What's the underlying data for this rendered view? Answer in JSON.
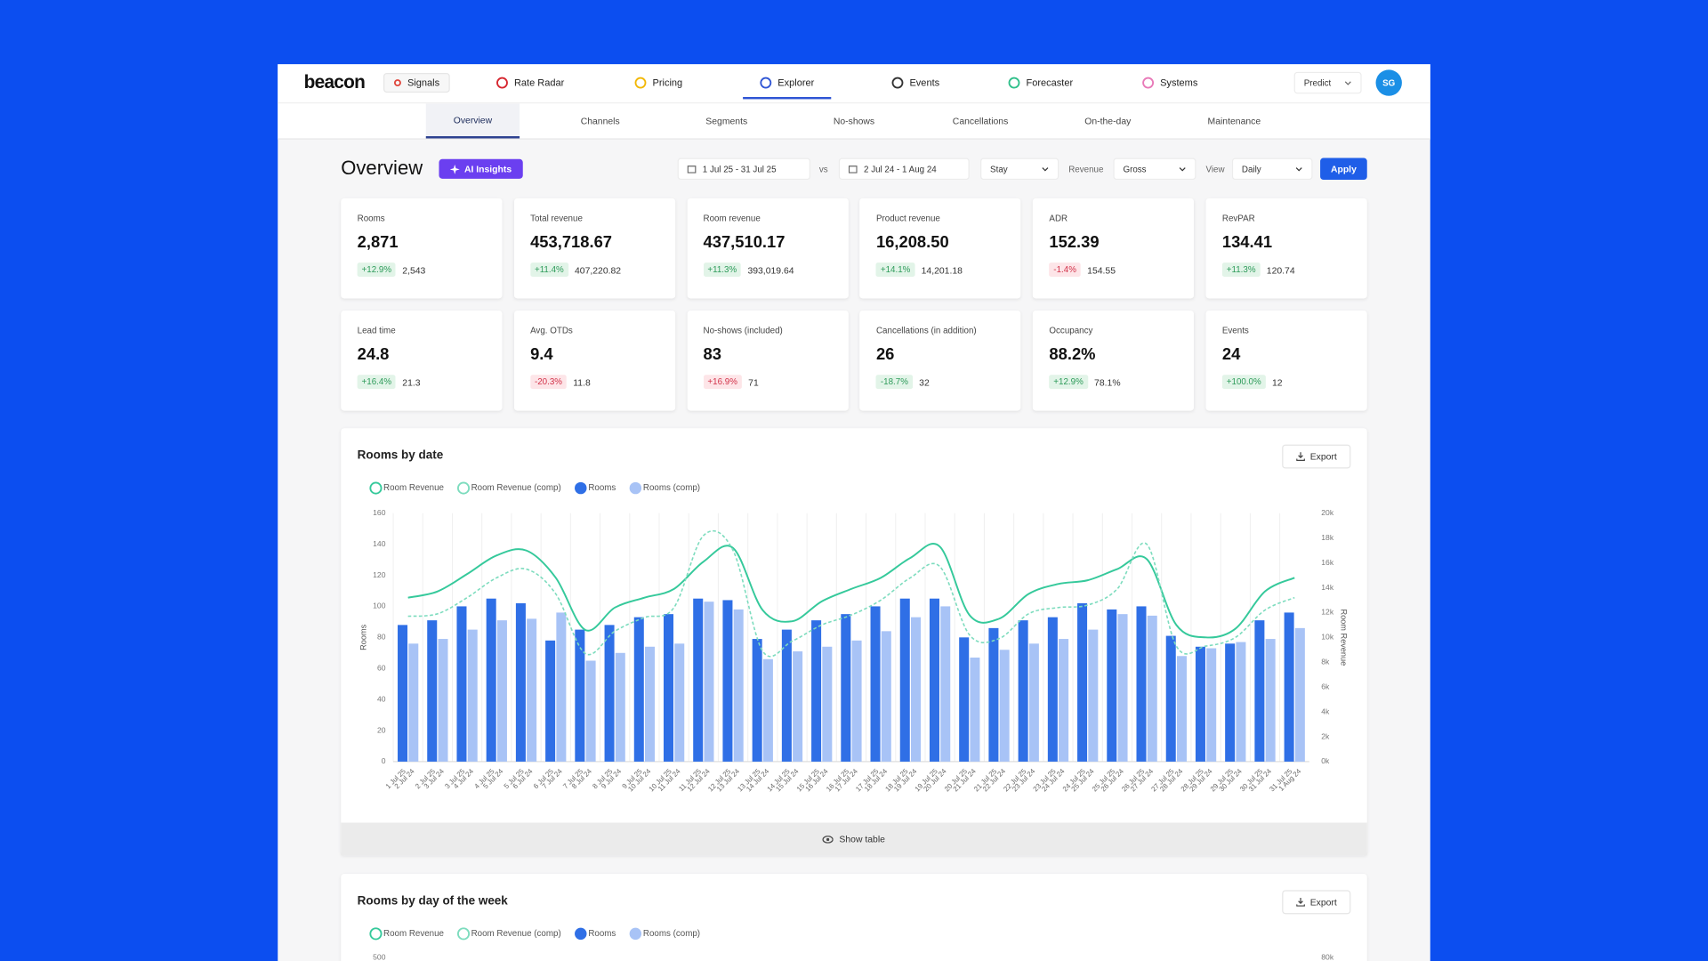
{
  "nav": {
    "logo": "beacon",
    "items": [
      "Signals",
      "Rate Radar",
      "Pricing",
      "Explorer",
      "Events",
      "Forecaster",
      "Systems"
    ],
    "active_index": 3,
    "predict": "Predict",
    "avatar": "SG"
  },
  "subnav": {
    "items": [
      "Overview",
      "Channels",
      "Segments",
      "No-shows",
      "Cancellations",
      "On-the-day",
      "Maintenance"
    ],
    "active_index": 0
  },
  "header": {
    "title": "Overview",
    "ai_button": "AI Insights"
  },
  "filters": {
    "date_range": "1 Jul 25 - 31 Jul 25",
    "vs": "vs",
    "compare_range": "2 Jul 24 - 1 Aug 24",
    "basis": "Stay",
    "revenue_label": "Revenue",
    "revenue": "Gross",
    "view_label": "View",
    "view": "Daily",
    "apply": "Apply"
  },
  "kpis": [
    {
      "label": "Rooms",
      "value": "2,871",
      "change": "+12.9%",
      "compare": "2,543",
      "tone": "positive"
    },
    {
      "label": "Total revenue",
      "value": "453,718.67",
      "change": "+11.4%",
      "compare": "407,220.82",
      "tone": "positive"
    },
    {
      "label": "Room revenue",
      "value": "437,510.17",
      "change": "+11.3%",
      "compare": "393,019.64",
      "tone": "positive"
    },
    {
      "label": "Product revenue",
      "value": "16,208.50",
      "change": "+14.1%",
      "compare": "14,201.18",
      "tone": "positive"
    },
    {
      "label": "ADR",
      "value": "152.39",
      "change": "-1.4%",
      "compare": "154.55",
      "tone": "negative"
    },
    {
      "label": "RevPAR",
      "value": "134.41",
      "change": "+11.3%",
      "compare": "120.74",
      "tone": "positive"
    },
    {
      "label": "Lead time",
      "value": "24.8",
      "change": "+16.4%",
      "compare": "21.3",
      "tone": "positive"
    },
    {
      "label": "Avg. OTDs",
      "value": "9.4",
      "change": "-20.3%",
      "compare": "11.8",
      "tone": "negative"
    },
    {
      "label": "No-shows (included)",
      "value": "83",
      "change": "+16.9%",
      "compare": "71",
      "tone": "negative"
    },
    {
      "label": "Cancellations (in addition)",
      "value": "26",
      "change": "-18.7%",
      "compare": "32",
      "tone": "positive"
    },
    {
      "label": "Occupancy",
      "value": "88.2%",
      "change": "+12.9%",
      "compare": "78.1%",
      "tone": "positive"
    },
    {
      "label": "Events",
      "value": "24",
      "change": "+100.0%",
      "compare": "12",
      "tone": "positive"
    }
  ],
  "chart_data": [
    {
      "type": "bar",
      "title": "Rooms by date",
      "export": "Export",
      "show_table": "Show table",
      "ylabel": "Rooms",
      "y2label": "Room Revenue",
      "grid": "x",
      "categories": [
        "1 Jul 25",
        "2 Jul 25",
        "3 Jul 25",
        "4 Jul 25",
        "5 Jul 25",
        "6 Jul 25",
        "7 Jul 25",
        "8 Jul 25",
        "9 Jul 25",
        "10 Jul 25",
        "11 Jul 25",
        "12 Jul 25",
        "13 Jul 25",
        "14 Jul 25",
        "15 Jul 25",
        "16 Jul 25",
        "17 Jul 25",
        "18 Jul 25",
        "19 Jul 25",
        "20 Jul 25",
        "21 Jul 25",
        "22 Jul 25",
        "23 Jul 25",
        "24 Jul 25",
        "25 Jul 25",
        "26 Jul 25",
        "27 Jul 25",
        "28 Jul 25",
        "29 Jul 25",
        "30 Jul 25",
        "31 Jul 25"
      ],
      "comp_categories": [
        "2 Jul 24",
        "3 Jul 24",
        "4 Jul 24",
        "5 Jul 24",
        "6 Jul 24",
        "7 Jul 24",
        "8 Jul 24",
        "9 Jul 24",
        "10 Jul 24",
        "11 Jul 24",
        "12 Jul 24",
        "13 Jul 24",
        "14 Jul 24",
        "15 Jul 24",
        "16 Jul 24",
        "17 Jul 24",
        "18 Jul 24",
        "19 Jul 24",
        "20 Jul 24",
        "21 Jul 24",
        "22 Jul 24",
        "23 Jul 24",
        "24 Jul 24",
        "25 Jul 24",
        "26 Jul 24",
        "27 Jul 24",
        "28 Jul 24",
        "29 Jul 24",
        "30 Jul 24",
        "31 Jul 24",
        "1 Aug 24"
      ],
      "series": [
        {
          "name": "Room Revenue",
          "type": "line",
          "axis": "y2",
          "color": "#35c99b",
          "dashed": false,
          "values": [
            13200,
            13700,
            15100,
            16600,
            17000,
            14800,
            10600,
            12400,
            13200,
            13900,
            16100,
            17200,
            12200,
            11300,
            12900,
            13900,
            14800,
            16400,
            17300,
            11800,
            11500,
            13500,
            14300,
            14600,
            15500,
            16300,
            11000,
            10000,
            10700,
            13700,
            14800
          ]
        },
        {
          "name": "Room Revenue (comp)",
          "type": "line",
          "axis": "y2",
          "color": "#7ddcbe",
          "dashed": true,
          "values": [
            11700,
            11900,
            13200,
            14800,
            15500,
            13500,
            8700,
            10500,
            11600,
            12400,
            18200,
            17000,
            8900,
            9700,
            11000,
            11800,
            13000,
            14800,
            15700,
            10200,
            9900,
            11900,
            12400,
            12600,
            13900,
            17500,
            9300,
            9300,
            10000,
            12200,
            13200
          ]
        },
        {
          "name": "Rooms",
          "type": "bar",
          "color": "#2f6fe6",
          "values": [
            88,
            91,
            100,
            105,
            102,
            78,
            85,
            88,
            93,
            95,
            105,
            104,
            79,
            85,
            91,
            95,
            100,
            105,
            105,
            80,
            86,
            91,
            93,
            102,
            98,
            100,
            81,
            74,
            76,
            91,
            96
          ]
        },
        {
          "name": "Rooms (comp)",
          "type": "bar",
          "color": "#a8c3f6",
          "values": [
            76,
            79,
            85,
            91,
            92,
            96,
            65,
            70,
            74,
            76,
            103,
            98,
            66,
            71,
            74,
            78,
            84,
            93,
            100,
            67,
            72,
            76,
            79,
            85,
            95,
            94,
            68,
            73,
            77,
            79,
            86
          ]
        }
      ],
      "ylim": [
        0,
        160
      ],
      "yticks": [
        0,
        20,
        40,
        60,
        80,
        100,
        120,
        140,
        160
      ],
      "y2lim": [
        0,
        20000
      ],
      "y2ticks": [
        {
          "value": 0,
          "label": "0k"
        },
        {
          "value": 2000,
          "label": "2k"
        },
        {
          "value": 4000,
          "label": "4k"
        },
        {
          "value": 6000,
          "label": "6k"
        },
        {
          "value": 8000,
          "label": "8k"
        },
        {
          "value": 10000,
          "label": "10k"
        },
        {
          "value": 12000,
          "label": "12k"
        },
        {
          "value": 14000,
          "label": "14k"
        },
        {
          "value": 16000,
          "label": "16k"
        },
        {
          "value": 18000,
          "label": "18k"
        },
        {
          "value": 20000,
          "label": "20k"
        }
      ]
    },
    {
      "type": "bar",
      "title": "Rooms by day of the week",
      "export": "Export",
      "series": [
        {
          "name": "Room Revenue",
          "type": "line",
          "axis": "y2",
          "color": "#35c99b"
        },
        {
          "name": "Room Revenue (comp)",
          "type": "line",
          "axis": "y2",
          "color": "#7ddcbe"
        },
        {
          "name": "Rooms",
          "type": "bar",
          "color": "#2f6fe6"
        },
        {
          "name": "Rooms (comp)",
          "type": "bar",
          "color": "#a8c3f6"
        }
      ],
      "yticks": [
        500
      ],
      "y2ticks": [
        {
          "value": 80000,
          "label": "80k"
        }
      ]
    }
  ]
}
